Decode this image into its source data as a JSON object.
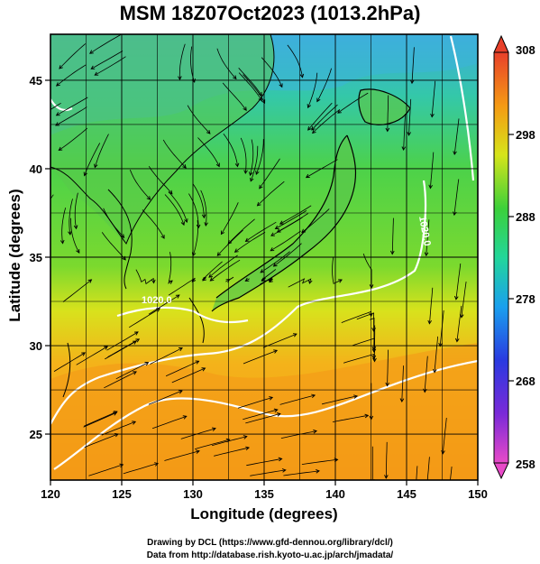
{
  "chart_data": {
    "type": "heatmap",
    "title": "MSM 18Z07Oct2023 (1013.2hPa)",
    "xlabel": "Longitude (degrees)",
    "ylabel": "Latitude  (degrees)",
    "xlim": [
      120,
      150
    ],
    "ylim": [
      22.4,
      47.6
    ],
    "x_ticks": [
      120,
      125,
      130,
      135,
      140,
      145,
      150
    ],
    "y_ticks": [
      25,
      30,
      35,
      40,
      45
    ],
    "colorbar": {
      "min": 258,
      "max": 308,
      "ticks": [
        258,
        268,
        278,
        288,
        298,
        308
      ]
    },
    "contour_labels": [
      "1020.0",
      "1020.0"
    ]
  },
  "credits": {
    "line1": "Drawing by DCL (https://www.gfd-dennou.org/library/dcl/)",
    "line2": "Data from http://database.rish.kyoto-u.ac.jp/arch/jmadata/"
  }
}
